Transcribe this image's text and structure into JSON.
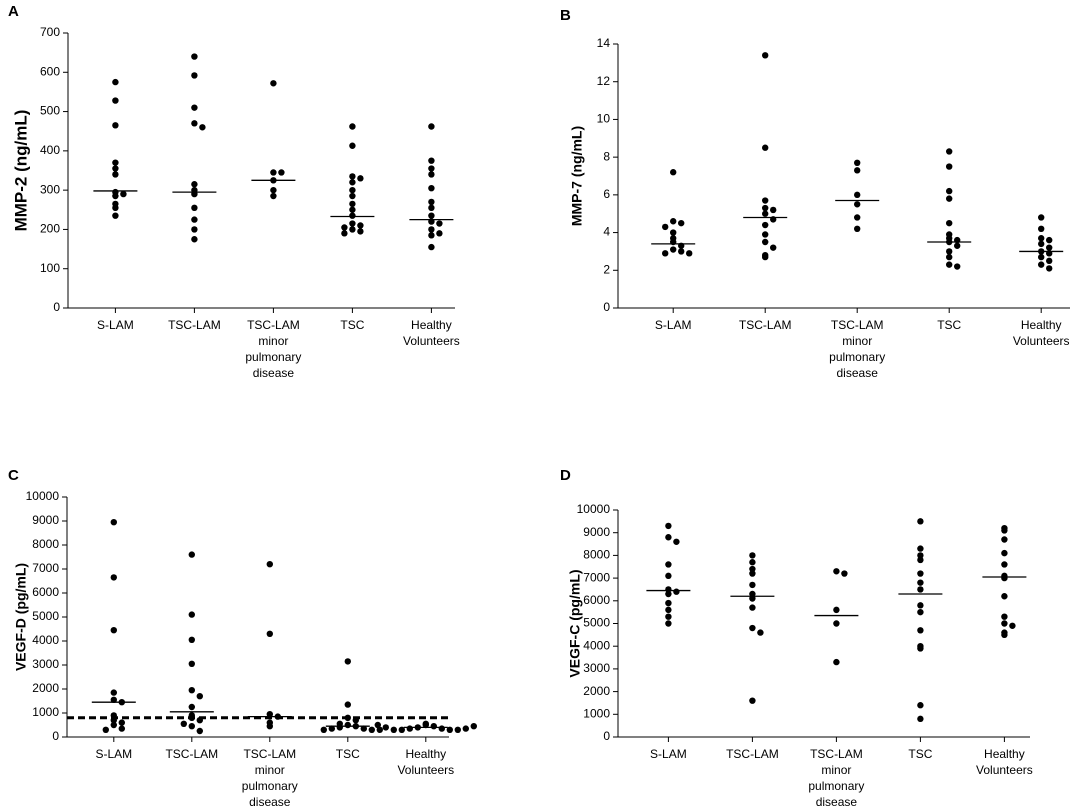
{
  "chart_data": [
    {
      "type": "dot",
      "panel": "A",
      "ylabel": "MMP-2 (ng/mL)",
      "categories": [
        "S-LAM",
        "TSC-LAM",
        "TSC-LAM minor pulmonary disease",
        "TSC",
        "Healthy Volunteers"
      ],
      "values": [
        [
          575,
          528,
          465,
          370,
          355,
          340,
          295,
          285,
          290,
          265,
          255,
          235
        ],
        [
          640,
          592,
          510,
          470,
          460,
          315,
          300,
          290,
          255,
          225,
          200,
          175
        ],
        [
          572,
          345,
          345,
          325,
          300,
          285
        ],
        [
          462,
          413,
          335,
          330,
          320,
          300,
          285,
          265,
          250,
          235,
          215,
          210,
          205,
          200,
          195,
          190
        ],
        [
          462,
          375,
          355,
          340,
          305,
          270,
          255,
          235,
          220,
          215,
          200,
          190,
          185,
          155
        ]
      ],
      "medians": [
        298,
        295,
        325,
        233,
        225
      ],
      "color": "#000000",
      "ylim": [
        0,
        700
      ],
      "yticks": [
        0,
        100,
        200,
        300,
        400,
        500,
        600,
        700
      ]
    },
    {
      "type": "dot",
      "panel": "B",
      "ylabel": "MMP-7 (ng/mL)",
      "categories": [
        "S-LAM",
        "TSC-LAM",
        "TSC-LAM minor pulmonary disease",
        "TSC",
        "Healthy Volunteers"
      ],
      "values": [
        [
          7.2,
          4.6,
          4.5,
          4.3,
          4.0,
          3.7,
          3.5,
          3.3,
          3.1,
          3.0,
          2.9,
          2.9
        ],
        [
          13.4,
          8.5,
          5.7,
          5.3,
          5.2,
          5.0,
          4.7,
          4.4,
          3.9,
          3.5,
          3.2,
          2.8,
          2.7
        ],
        [
          7.7,
          7.3,
          6.0,
          5.5,
          4.8,
          4.2
        ],
        [
          8.3,
          7.5,
          6.2,
          5.8,
          4.5,
          3.9,
          3.7,
          3.6,
          3.5,
          3.3,
          3.0,
          2.7,
          2.3,
          2.2
        ],
        [
          4.8,
          4.2,
          3.7,
          3.6,
          3.4,
          3.2,
          3.0,
          2.9,
          2.7,
          2.5,
          2.3,
          2.1
        ]
      ],
      "medians": [
        3.4,
        4.8,
        5.7,
        3.5,
        3.0
      ],
      "color": "#000000",
      "ylim": [
        0,
        14
      ],
      "yticks": [
        0,
        2,
        4,
        6,
        8,
        10,
        12,
        14
      ]
    },
    {
      "type": "dot",
      "panel": "C",
      "ylabel": "VEGF-D (pg/mL)",
      "categories": [
        "S-LAM",
        "TSC-LAM",
        "TSC-LAM minor pulmonary disease",
        "TSC",
        "Healthy Volunteers"
      ],
      "values": [
        [
          8950,
          6650,
          4450,
          1850,
          1550,
          1450,
          900,
          700,
          600,
          500,
          350,
          300
        ],
        [
          7600,
          5100,
          4050,
          3050,
          1950,
          1700,
          1250,
          900,
          800,
          700,
          550,
          450,
          250
        ],
        [
          7200,
          4300,
          950,
          850,
          600,
          450
        ],
        [
          3150,
          1350,
          800,
          700,
          550,
          500,
          450,
          400,
          350,
          350,
          300,
          300,
          300
        ],
        [
          550,
          500,
          450,
          400,
          350,
          350,
          300,
          300,
          300,
          300,
          350,
          400,
          450,
          500
        ]
      ],
      "medians": [
        1450,
        1050,
        850,
        450,
        400
      ],
      "reference_line": 800,
      "color": "#000000",
      "ylim": [
        0,
        10000
      ],
      "yticks": [
        0,
        1000,
        2000,
        3000,
        4000,
        5000,
        6000,
        7000,
        8000,
        9000,
        10000
      ]
    },
    {
      "type": "dot",
      "panel": "D",
      "ylabel": "VEGF-C (pg/mL)",
      "categories": [
        "S-LAM",
        "TSC-LAM",
        "TSC-LAM minor pulmonary disease",
        "TSC",
        "Healthy Volunteers"
      ],
      "values": [
        [
          9300,
          8800,
          8600,
          7600,
          7100,
          6500,
          6300,
          6400,
          5900,
          5600,
          5300,
          5000
        ],
        [
          8000,
          7700,
          7400,
          7200,
          6700,
          6300,
          6100,
          5700,
          4800,
          4600,
          1600
        ],
        [
          7300,
          7200,
          5600,
          5000,
          3300
        ],
        [
          9500,
          8300,
          8000,
          7800,
          7200,
          6800,
          6500,
          5800,
          5500,
          4700,
          4000,
          3900,
          1400,
          800
        ],
        [
          9200,
          9100,
          8700,
          8100,
          7600,
          7100,
          7000,
          6200,
          5300,
          5000,
          4900,
          4600,
          4500
        ]
      ],
      "medians": [
        6450,
        6200,
        5350,
        6300,
        7050
      ],
      "color": "#000000",
      "ylim": [
        0,
        10000
      ],
      "yticks": [
        0,
        1000,
        2000,
        3000,
        4000,
        5000,
        6000,
        7000,
        8000,
        9000,
        10000
      ]
    }
  ]
}
